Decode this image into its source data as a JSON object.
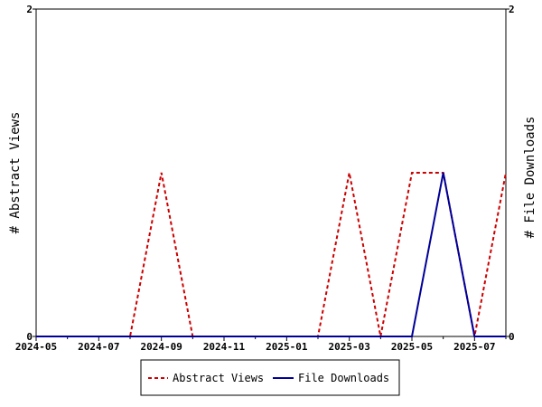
{
  "chart_data": {
    "type": "line",
    "x": [
      "2024-05",
      "2024-06",
      "2024-07",
      "2024-08",
      "2024-09",
      "2024-10",
      "2024-11",
      "2024-12",
      "2025-01",
      "2025-02",
      "2025-03",
      "2025-04",
      "2025-05",
      "2025-06",
      "2025-07",
      "2025-08"
    ],
    "x_tick_labels": [
      "2024-05",
      "2024-07",
      "2024-09",
      "2024-11",
      "2025-01",
      "2025-03",
      "2025-05",
      "2025-07"
    ],
    "series": [
      {
        "name": "Abstract Views",
        "axis": "left",
        "color": "#cc0000",
        "style": "dashed",
        "values": [
          0,
          0,
          0,
          0,
          1,
          0,
          0,
          0,
          0,
          0,
          1,
          0,
          1,
          1,
          0,
          1
        ]
      },
      {
        "name": "File Downloads",
        "axis": "right",
        "color": "#000099",
        "style": "solid",
        "values": [
          0,
          0,
          0,
          0,
          0,
          0,
          0,
          0,
          0,
          0,
          0,
          0,
          0,
          1,
          0,
          0
        ]
      }
    ],
    "ylabel": "# Abstract Views",
    "y2label": "# File Downloads",
    "ylim": [
      0,
      2
    ],
    "y2lim": [
      0,
      2
    ],
    "y_tick_labels": [
      "0",
      "2"
    ],
    "y2_tick_labels": [
      "0",
      "2"
    ],
    "grid": false,
    "legend_position": "bottom-center"
  }
}
